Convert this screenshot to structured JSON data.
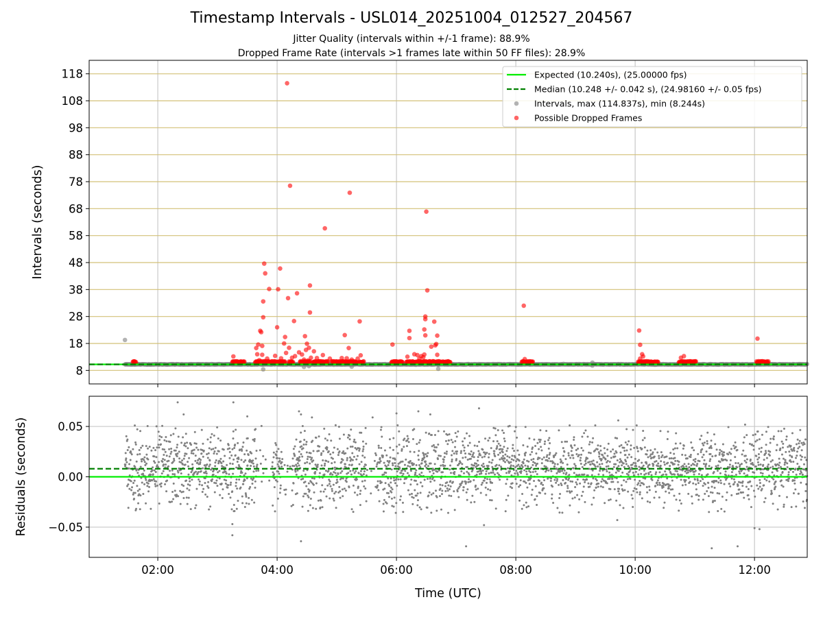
{
  "title": "Timestamp Intervals - USL014_20251004_012527_204567",
  "subtitle_1": "Jitter Quality (intervals within +/-1 frame): 88.9%",
  "subtitle_2": "Dropped Frame Rate (intervals >1 frames late within 50 FF files): 28.9%",
  "colors": {
    "expected": "#00ee00",
    "median": "#008000",
    "intervals": "#808080",
    "dropped": "#ff0000",
    "hgrid_top": "#d2c077",
    "grid": "#c8c8c8"
  },
  "chart_data": [
    {
      "type": "scatter",
      "ylabel": "Intervals (seconds)",
      "ylim": [
        3,
        123
      ],
      "yticks": [
        8,
        18,
        28,
        38,
        48,
        58,
        68,
        78,
        88,
        98,
        108,
        118
      ],
      "xlim": [
        "00:51",
        "12:53"
      ],
      "xticks": [
        "02:00",
        "04:00",
        "06:00",
        "08:00",
        "10:00",
        "12:00"
      ],
      "grid": true,
      "legend_position": "top-right",
      "legend": [
        "Expected (10.240s), (25.00000 fps)",
        "Median (10.248 +/- 0.042 s), (24.98160 +/- 0.05 fps)",
        "Intervals, max (114.837s), min (8.244s)",
        "Possible Dropped Frames"
      ],
      "expected_value": 10.24,
      "median_value": 10.248,
      "data_start": "01:27",
      "data_end": "12:53",
      "interval_outliers": [
        {
          "x": "01:27",
          "y": 19.3
        },
        {
          "x": "03:46",
          "y": 8.4
        },
        {
          "x": "04:27",
          "y": 9.3
        },
        {
          "x": "04:32",
          "y": 9.6
        },
        {
          "x": "05:15",
          "y": 9.4
        },
        {
          "x": "06:42",
          "y": 8.6
        },
        {
          "x": "09:17",
          "y": 10.9
        },
        {
          "x": "09:17",
          "y": 9.8
        }
      ],
      "dropped_frames": [
        {
          "x": "03:16",
          "y": 13.2
        },
        {
          "x": "03:39",
          "y": 16.3
        },
        {
          "x": "03:40",
          "y": 14.0
        },
        {
          "x": "03:41",
          "y": 17.6
        },
        {
          "x": "03:42",
          "y": 11.8
        },
        {
          "x": "03:43",
          "y": 22.7
        },
        {
          "x": "03:44",
          "y": 22.2
        },
        {
          "x": "03:45",
          "y": 13.8
        },
        {
          "x": "03:45",
          "y": 17.1
        },
        {
          "x": "03:46",
          "y": 33.6
        },
        {
          "x": "03:46",
          "y": 27.7
        },
        {
          "x": "03:47",
          "y": 47.6
        },
        {
          "x": "03:48",
          "y": 44.0
        },
        {
          "x": "03:50",
          "y": 12.4
        },
        {
          "x": "03:52",
          "y": 38.2
        },
        {
          "x": "03:58",
          "y": 13.4
        },
        {
          "x": "04:00",
          "y": 24.0
        },
        {
          "x": "04:01",
          "y": 38.1
        },
        {
          "x": "04:03",
          "y": 45.8
        },
        {
          "x": "04:04",
          "y": 12.5
        },
        {
          "x": "04:07",
          "y": 18.0
        },
        {
          "x": "04:08",
          "y": 20.4
        },
        {
          "x": "04:09",
          "y": 14.5
        },
        {
          "x": "04:10",
          "y": 114.5
        },
        {
          "x": "04:11",
          "y": 34.8
        },
        {
          "x": "04:12",
          "y": 16.4
        },
        {
          "x": "04:13",
          "y": 76.5
        },
        {
          "x": "04:15",
          "y": 12.7
        },
        {
          "x": "04:17",
          "y": 26.3
        },
        {
          "x": "04:18",
          "y": 13.3
        },
        {
          "x": "04:20",
          "y": 36.6
        },
        {
          "x": "04:22",
          "y": 14.7
        },
        {
          "x": "04:25",
          "y": 13.9
        },
        {
          "x": "04:27",
          "y": 12.0
        },
        {
          "x": "04:28",
          "y": 20.7
        },
        {
          "x": "04:29",
          "y": 15.6
        },
        {
          "x": "04:30",
          "y": 17.9
        },
        {
          "x": "04:31",
          "y": 11.7
        },
        {
          "x": "04:32",
          "y": 16.4
        },
        {
          "x": "04:33",
          "y": 39.5
        },
        {
          "x": "04:33",
          "y": 29.5
        },
        {
          "x": "04:34",
          "y": 12.7
        },
        {
          "x": "04:37",
          "y": 15.1
        },
        {
          "x": "04:40",
          "y": 12.6
        },
        {
          "x": "04:46",
          "y": 13.7
        },
        {
          "x": "04:48",
          "y": 60.7
        },
        {
          "x": "04:53",
          "y": 12.4
        },
        {
          "x": "05:05",
          "y": 12.6
        },
        {
          "x": "05:08",
          "y": 21.1
        },
        {
          "x": "05:10",
          "y": 12.5
        },
        {
          "x": "05:12",
          "y": 16.3
        },
        {
          "x": "05:13",
          "y": 73.9
        },
        {
          "x": "05:15",
          "y": 12.0
        },
        {
          "x": "05:21",
          "y": 12.4
        },
        {
          "x": "05:23",
          "y": 26.2
        },
        {
          "x": "05:24",
          "y": 13.6
        },
        {
          "x": "05:56",
          "y": 17.6
        },
        {
          "x": "06:11",
          "y": 13.1
        },
        {
          "x": "06:13",
          "y": 22.7
        },
        {
          "x": "06:13",
          "y": 20.0
        },
        {
          "x": "06:18",
          "y": 14.0
        },
        {
          "x": "06:21",
          "y": 13.7
        },
        {
          "x": "06:23",
          "y": 12.4
        },
        {
          "x": "06:25",
          "y": 13.3
        },
        {
          "x": "06:27",
          "y": 12.9
        },
        {
          "x": "06:28",
          "y": 13.9
        },
        {
          "x": "06:28",
          "y": 23.2
        },
        {
          "x": "06:29",
          "y": 28.0
        },
        {
          "x": "06:29",
          "y": 27.0
        },
        {
          "x": "06:29",
          "y": 21.0
        },
        {
          "x": "06:30",
          "y": 66.9
        },
        {
          "x": "06:31",
          "y": 37.7
        },
        {
          "x": "06:35",
          "y": 16.8
        },
        {
          "x": "06:38",
          "y": 26.1
        },
        {
          "x": "06:39",
          "y": 17.3
        },
        {
          "x": "06:40",
          "y": 17.8
        },
        {
          "x": "06:41",
          "y": 13.8
        },
        {
          "x": "06:41",
          "y": 20.9
        },
        {
          "x": "08:08",
          "y": 32.0
        },
        {
          "x": "08:09",
          "y": 12.2
        },
        {
          "x": "10:04",
          "y": 22.8
        },
        {
          "x": "10:05",
          "y": 17.5
        },
        {
          "x": "10:05",
          "y": 12.4
        },
        {
          "x": "10:07",
          "y": 14.0
        },
        {
          "x": "10:08",
          "y": 13.2
        },
        {
          "x": "10:46",
          "y": 12.7
        },
        {
          "x": "10:49",
          "y": 13.3
        },
        {
          "x": "12:03",
          "y": 19.8
        },
        {
          "x": "12:04",
          "y": 11.4
        },
        {
          "x": "12:05",
          "y": 10.9
        }
      ],
      "dropped_baseline_segments": [
        [
          "01:35",
          "01:38"
        ],
        [
          "03:15",
          "03:27"
        ],
        [
          "03:38",
          "04:08"
        ],
        [
          "04:12",
          "04:16"
        ],
        [
          "04:23",
          "04:33"
        ],
        [
          "04:36",
          "04:51"
        ],
        [
          "04:55",
          "05:03"
        ],
        [
          "05:04",
          "05:20"
        ],
        [
          "05:22",
          "05:27"
        ],
        [
          "05:55",
          "06:06"
        ],
        [
          "06:10",
          "06:34"
        ],
        [
          "06:35",
          "06:54"
        ],
        [
          "08:06",
          "08:17"
        ],
        [
          "10:03",
          "10:23"
        ],
        [
          "10:44",
          "11:01"
        ],
        [
          "12:02",
          "12:14"
        ]
      ]
    },
    {
      "type": "scatter",
      "ylabel": "Residuals (seconds)",
      "xlabel": "Time (UTC)",
      "ylim": [
        -0.08,
        0.08
      ],
      "yticks": [
        "−0.05",
        "0.00",
        "0.05"
      ],
      "ytick_values": [
        -0.05,
        0.0,
        0.05
      ],
      "xlim": [
        "00:51",
        "12:53"
      ],
      "xticks": [
        "02:00",
        "04:00",
        "06:00",
        "08:00",
        "10:00",
        "12:00"
      ],
      "grid": true,
      "expected_residual": 0.0,
      "median_residual": 0.008,
      "residual_spread_sd": 0.018,
      "residual_points_approx_count": 3000,
      "residual_gaps": [
        [
          "03:40",
          "03:55"
        ],
        [
          "04:05",
          "04:15"
        ],
        [
          "05:30",
          "05:40"
        ]
      ],
      "residual_outliers": [
        {
          "x": "02:20",
          "y": 0.074
        },
        {
          "x": "02:26",
          "y": 0.062
        },
        {
          "x": "03:15",
          "y": -0.047
        },
        {
          "x": "03:15",
          "y": -0.058
        },
        {
          "x": "03:16",
          "y": 0.074
        },
        {
          "x": "03:30",
          "y": 0.06
        },
        {
          "x": "04:22",
          "y": 0.065
        },
        {
          "x": "04:24",
          "y": -0.064
        },
        {
          "x": "04:24",
          "y": 0.062
        },
        {
          "x": "04:35",
          "y": 0.059
        },
        {
          "x": "05:36",
          "y": 0.059
        },
        {
          "x": "06:00",
          "y": 0.063
        },
        {
          "x": "06:22",
          "y": 0.065
        },
        {
          "x": "06:34",
          "y": 0.062
        },
        {
          "x": "07:10",
          "y": -0.069
        },
        {
          "x": "07:23",
          "y": 0.068
        },
        {
          "x": "07:28",
          "y": -0.048
        },
        {
          "x": "09:43",
          "y": 0.056
        },
        {
          "x": "09:42",
          "y": -0.043
        },
        {
          "x": "11:17",
          "y": -0.071
        },
        {
          "x": "11:43",
          "y": -0.069
        },
        {
          "x": "12:00",
          "y": -0.051
        },
        {
          "x": "12:05",
          "y": -0.052
        }
      ]
    }
  ]
}
